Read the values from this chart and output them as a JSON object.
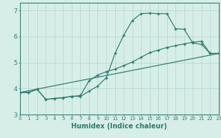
{
  "xlabel": "Humidex (Indice chaleur)",
  "background_color": "#d7eee8",
  "line_color": "#2d7d6e",
  "grid_color": "#aed4ca",
  "curve1_x": [
    0,
    1,
    2,
    3,
    4,
    5,
    6,
    7,
    8,
    9,
    10,
    11,
    12,
    13,
    14,
    15,
    16,
    17,
    18,
    19,
    20,
    21,
    22,
    23
  ],
  "curve1_y": [
    3.85,
    3.85,
    3.97,
    3.58,
    3.62,
    3.65,
    3.7,
    3.7,
    3.9,
    4.1,
    4.42,
    5.35,
    6.05,
    6.62,
    6.88,
    6.9,
    6.88,
    6.88,
    6.3,
    6.28,
    5.75,
    5.7,
    5.35,
    5.35
  ],
  "curve2_x": [
    0,
    1,
    2,
    3,
    4,
    5,
    6,
    7,
    8,
    9,
    10,
    11,
    12,
    13,
    14,
    15,
    16,
    17,
    18,
    19,
    20,
    21,
    22,
    23
  ],
  "curve2_y": [
    3.85,
    3.85,
    3.97,
    3.58,
    3.62,
    3.65,
    3.7,
    3.73,
    4.3,
    4.52,
    4.65,
    4.75,
    4.88,
    5.02,
    5.2,
    5.38,
    5.48,
    5.58,
    5.65,
    5.72,
    5.78,
    5.82,
    5.35,
    5.35
  ],
  "curve3_x": [
    0,
    23
  ],
  "curve3_y": [
    3.85,
    5.35
  ],
  "xlim": [
    0,
    23
  ],
  "ylim": [
    3.0,
    7.3
  ],
  "yticks": [
    3,
    4,
    5,
    6,
    7
  ],
  "xticks": [
    0,
    1,
    2,
    3,
    4,
    5,
    6,
    7,
    8,
    9,
    10,
    11,
    12,
    13,
    14,
    15,
    16,
    17,
    18,
    19,
    20,
    21,
    22,
    23
  ]
}
